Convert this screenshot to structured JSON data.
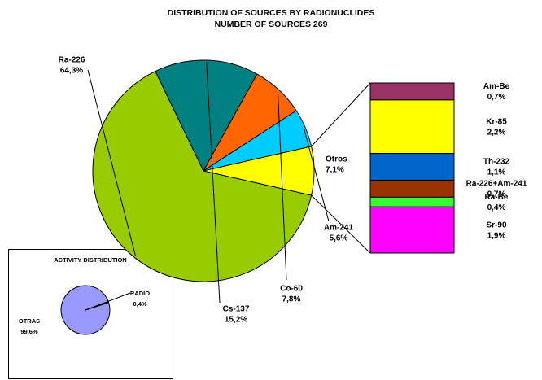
{
  "chart_data": [
    {
      "type": "pie",
      "title": "DISTRIBUTION OF SOURCES BY RADIONUCLIDES",
      "subtitle": "NUMBER OF SOURCES 269",
      "categories": [
        "Ra-226",
        "Cs-137",
        "Co-60",
        "Am-241",
        "Otros"
      ],
      "values": [
        64.3,
        15.2,
        7.8,
        5.6,
        7.1
      ],
      "value_labels": [
        "64,3%",
        "15,2%",
        "7,8%",
        "5,6%",
        "7,1%"
      ],
      "colors": [
        "#99cc00",
        "#008080",
        "#ff6600",
        "#00ccff",
        "#ffff00"
      ]
    },
    {
      "type": "bar",
      "categories": [
        "Am-Be",
        "Kr-85",
        "Th-232",
        "Ra-226+Am-241",
        "Ra-Be",
        "Sr-90"
      ],
      "values": [
        0.7,
        2.2,
        1.1,
        0.7,
        0.4,
        1.9
      ],
      "value_labels": [
        "0,7%",
        "2,2%",
        "1,1%",
        "0,7%",
        "0,4%",
        "1,9%"
      ],
      "colors": [
        "#993366",
        "#ffff00",
        "#0066cc",
        "#993300",
        "#33ff33",
        "#ff00ff"
      ]
    },
    {
      "type": "pie",
      "title": "ACTIVITY DISTRIBUTION",
      "categories": [
        "OTRAS",
        "RADIO"
      ],
      "values": [
        99.6,
        0.4
      ],
      "value_labels": [
        "99,6%",
        "0,4%"
      ],
      "colors": [
        "#9999ff",
        "#9999ff"
      ]
    }
  ]
}
